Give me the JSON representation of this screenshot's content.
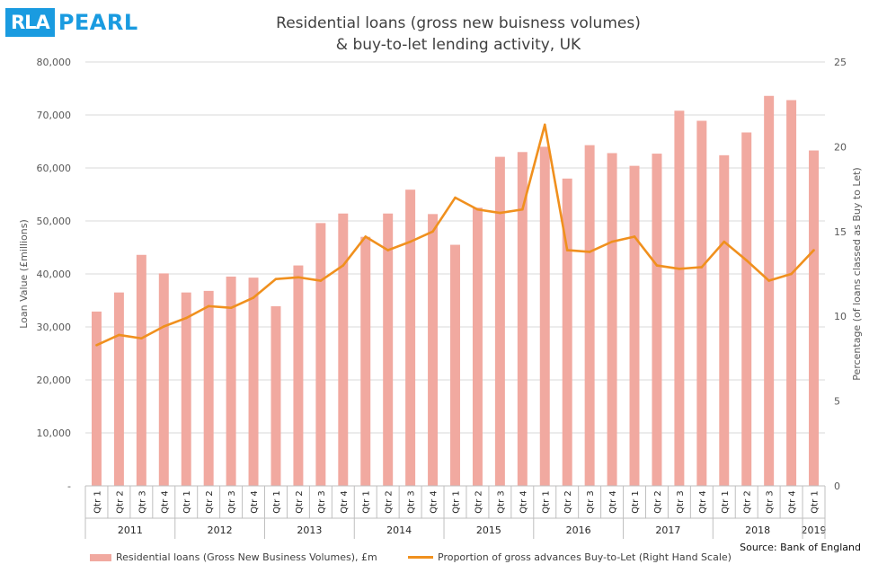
{
  "logo": {
    "mark": "RLA",
    "word": "PEARL"
  },
  "title_line1": "Residential loans (gross new buisness volumes)",
  "title_line2": "& buy-to-let lending activity, UK",
  "source": "Source: Bank of England",
  "chart_data": {
    "type": "bar+line",
    "categories": [
      "Qtr 1",
      "Qtr 2",
      "Qtr 3",
      "Qtr 4",
      "Qtr 1",
      "Qtr 2",
      "Qtr 3",
      "Qtr 4",
      "Qtr 1",
      "Qtr 2",
      "Qtr 3",
      "Qtr 4",
      "Qtr 1",
      "Qtr 2",
      "Qtr 3",
      "Qtr 4",
      "Qtr 1",
      "Qtr 2",
      "Qtr 3",
      "Qtr 4",
      "Qtr 1",
      "Qtr 2",
      "Qtr 3",
      "Qtr 4",
      "Qtr 1",
      "Qtr 2",
      "Qtr 3",
      "Qtr 4",
      "Qtr 1",
      "Qtr 2",
      "Qtr 3",
      "Qtr 4",
      "Qtr 1"
    ],
    "years": [
      {
        "label": "2011",
        "span": 4
      },
      {
        "label": "2012",
        "span": 4
      },
      {
        "label": "2013",
        "span": 4
      },
      {
        "label": "2014",
        "span": 4
      },
      {
        "label": "2015",
        "span": 4
      },
      {
        "label": "2016",
        "span": 4
      },
      {
        "label": "2017",
        "span": 4
      },
      {
        "label": "2018",
        "span": 4
      },
      {
        "label": "2019",
        "span": 1
      }
    ],
    "series": [
      {
        "name": "Residential loans (Gross New Business Volumes),  £m",
        "type": "bar",
        "axis": "left",
        "color": "#f1a9a0",
        "values": [
          32900,
          36500,
          43600,
          40100,
          36500,
          36800,
          39500,
          39300,
          33900,
          41600,
          49600,
          51400,
          47000,
          51400,
          55900,
          51300,
          45500,
          52500,
          62100,
          63000,
          64000,
          58000,
          64300,
          62800,
          60400,
          62700,
          70800,
          68900,
          62400,
          66700,
          73600,
          72800,
          63300
        ]
      },
      {
        "name": "Proportion of gross advances Buy-to-Let (Right Hand Scale)",
        "type": "line",
        "axis": "right",
        "color": "#f0901e",
        "values": [
          8.3,
          8.9,
          8.7,
          9.4,
          9.9,
          10.6,
          10.5,
          11.1,
          12.2,
          12.3,
          12.1,
          13.0,
          14.7,
          13.9,
          14.4,
          15.0,
          17.0,
          16.3,
          16.1,
          16.3,
          21.3,
          13.9,
          13.8,
          14.4,
          14.7,
          13.0,
          12.8,
          12.9,
          14.4,
          13.3,
          12.1,
          12.5,
          13.9
        ]
      }
    ],
    "y_left": {
      "label": "Loan Value  (£millions)",
      "min": 0,
      "max": 80000,
      "step": 10000,
      "ticks": [
        "-",
        "10,000",
        "20,000",
        "30,000",
        "40,000",
        "50,000",
        "60,000",
        "70,000",
        "80,000"
      ]
    },
    "y_right": {
      "label": "Percentage  (of loans classed as Buy to Let)",
      "min": 0,
      "max": 25,
      "step": 5,
      "ticks": [
        "0",
        "5",
        "10",
        "15",
        "20",
        "25"
      ]
    },
    "grid": true,
    "legend_position": "bottom"
  }
}
